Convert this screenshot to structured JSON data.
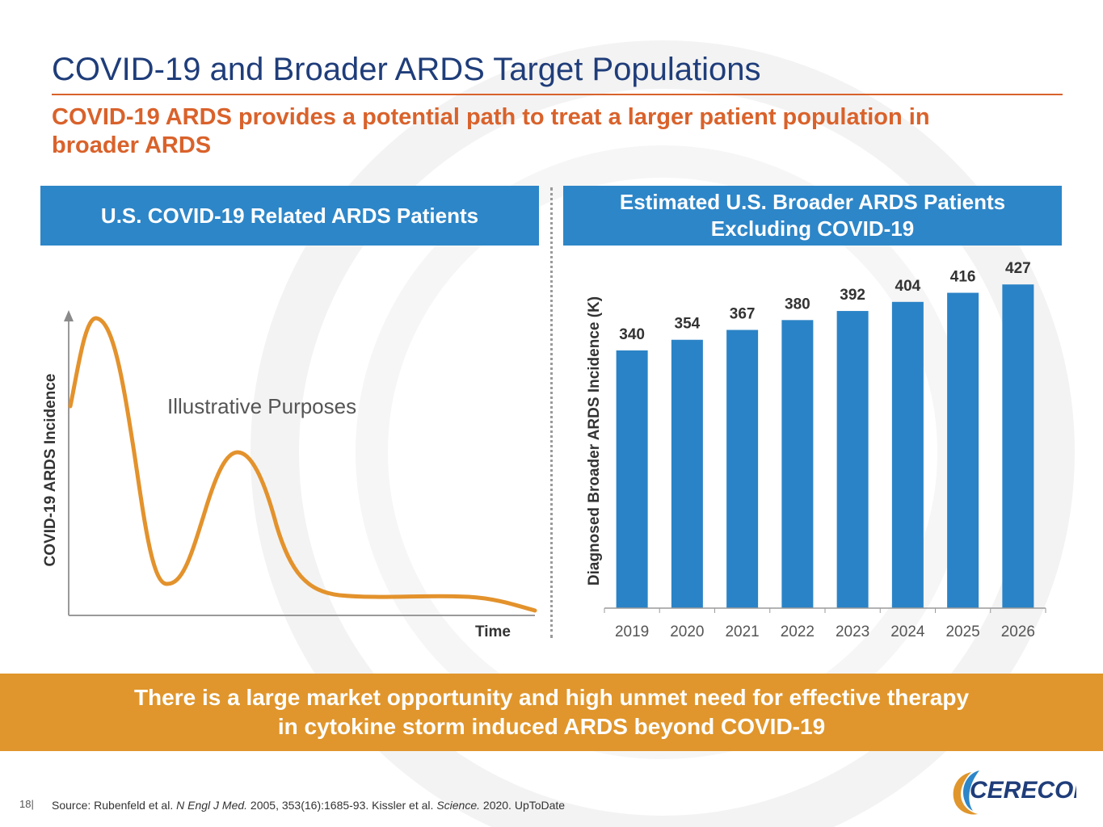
{
  "slide": {
    "title": "COVID-19 and Broader ARDS Target Populations",
    "subtitle_line1": "COVID-19 ARDS provides a potential path to treat a larger patient population in",
    "subtitle_line2": "broader ARDS",
    "left_header": "U.S. COVID-19 Related ARDS Patients",
    "right_header_line1": "Estimated U.S. Broader ARDS Patients",
    "right_header_line2": "Excluding COVID-19",
    "banner_line1": "There is a large market opportunity and high unmet need for effective therapy",
    "banner_line2": "in cytokine storm induced ARDS beyond COVID-19",
    "page_number": "18|",
    "source_parts": [
      "Source: Rubenfeld et al. ",
      "N Engl J Med.",
      " 2005, 353(16):1685-93. Kissler et al. ",
      "Science.",
      " 2020. UpToDate"
    ],
    "logo_text": "CEREROR"
  },
  "colors": {
    "title": "#1f3d7a",
    "accent_orange": "#d9622b",
    "header_blue": "#2d86c8",
    "bar_blue": "#2a83c6",
    "curve": "#e3922c",
    "banner": "#e0962c"
  },
  "chart_data": [
    {
      "type": "line",
      "illustrative": true,
      "annotation": "Illustrative Purposes",
      "xlabel": "Time",
      "ylabel": "COVID-19 ARDS Incidence",
      "x_ticks": false,
      "y_ticks": false,
      "description_points": [
        {
          "x": 0.0,
          "y": 0.68
        },
        {
          "x": 0.06,
          "y": 0.98
        },
        {
          "x": 0.12,
          "y": 0.72
        },
        {
          "x": 0.2,
          "y": 0.12
        },
        {
          "x": 0.26,
          "y": 0.14
        },
        {
          "x": 0.36,
          "y": 0.52
        },
        {
          "x": 0.44,
          "y": 0.28
        },
        {
          "x": 0.54,
          "y": 0.06
        },
        {
          "x": 0.7,
          "y": 0.05
        },
        {
          "x": 0.85,
          "y": 0.05
        },
        {
          "x": 1.0,
          "y": 0.0
        }
      ]
    },
    {
      "type": "bar",
      "categories": [
        "2019",
        "2020",
        "2021",
        "2022",
        "2023",
        "2024",
        "2025",
        "2026"
      ],
      "values": [
        340,
        354,
        367,
        380,
        392,
        404,
        416,
        427
      ],
      "ylabel": "Diagnosed Broader ARDS Incidence (K)",
      "xlabel": "",
      "ylim": [
        0,
        440
      ],
      "grid": false,
      "data_labels": true
    }
  ]
}
